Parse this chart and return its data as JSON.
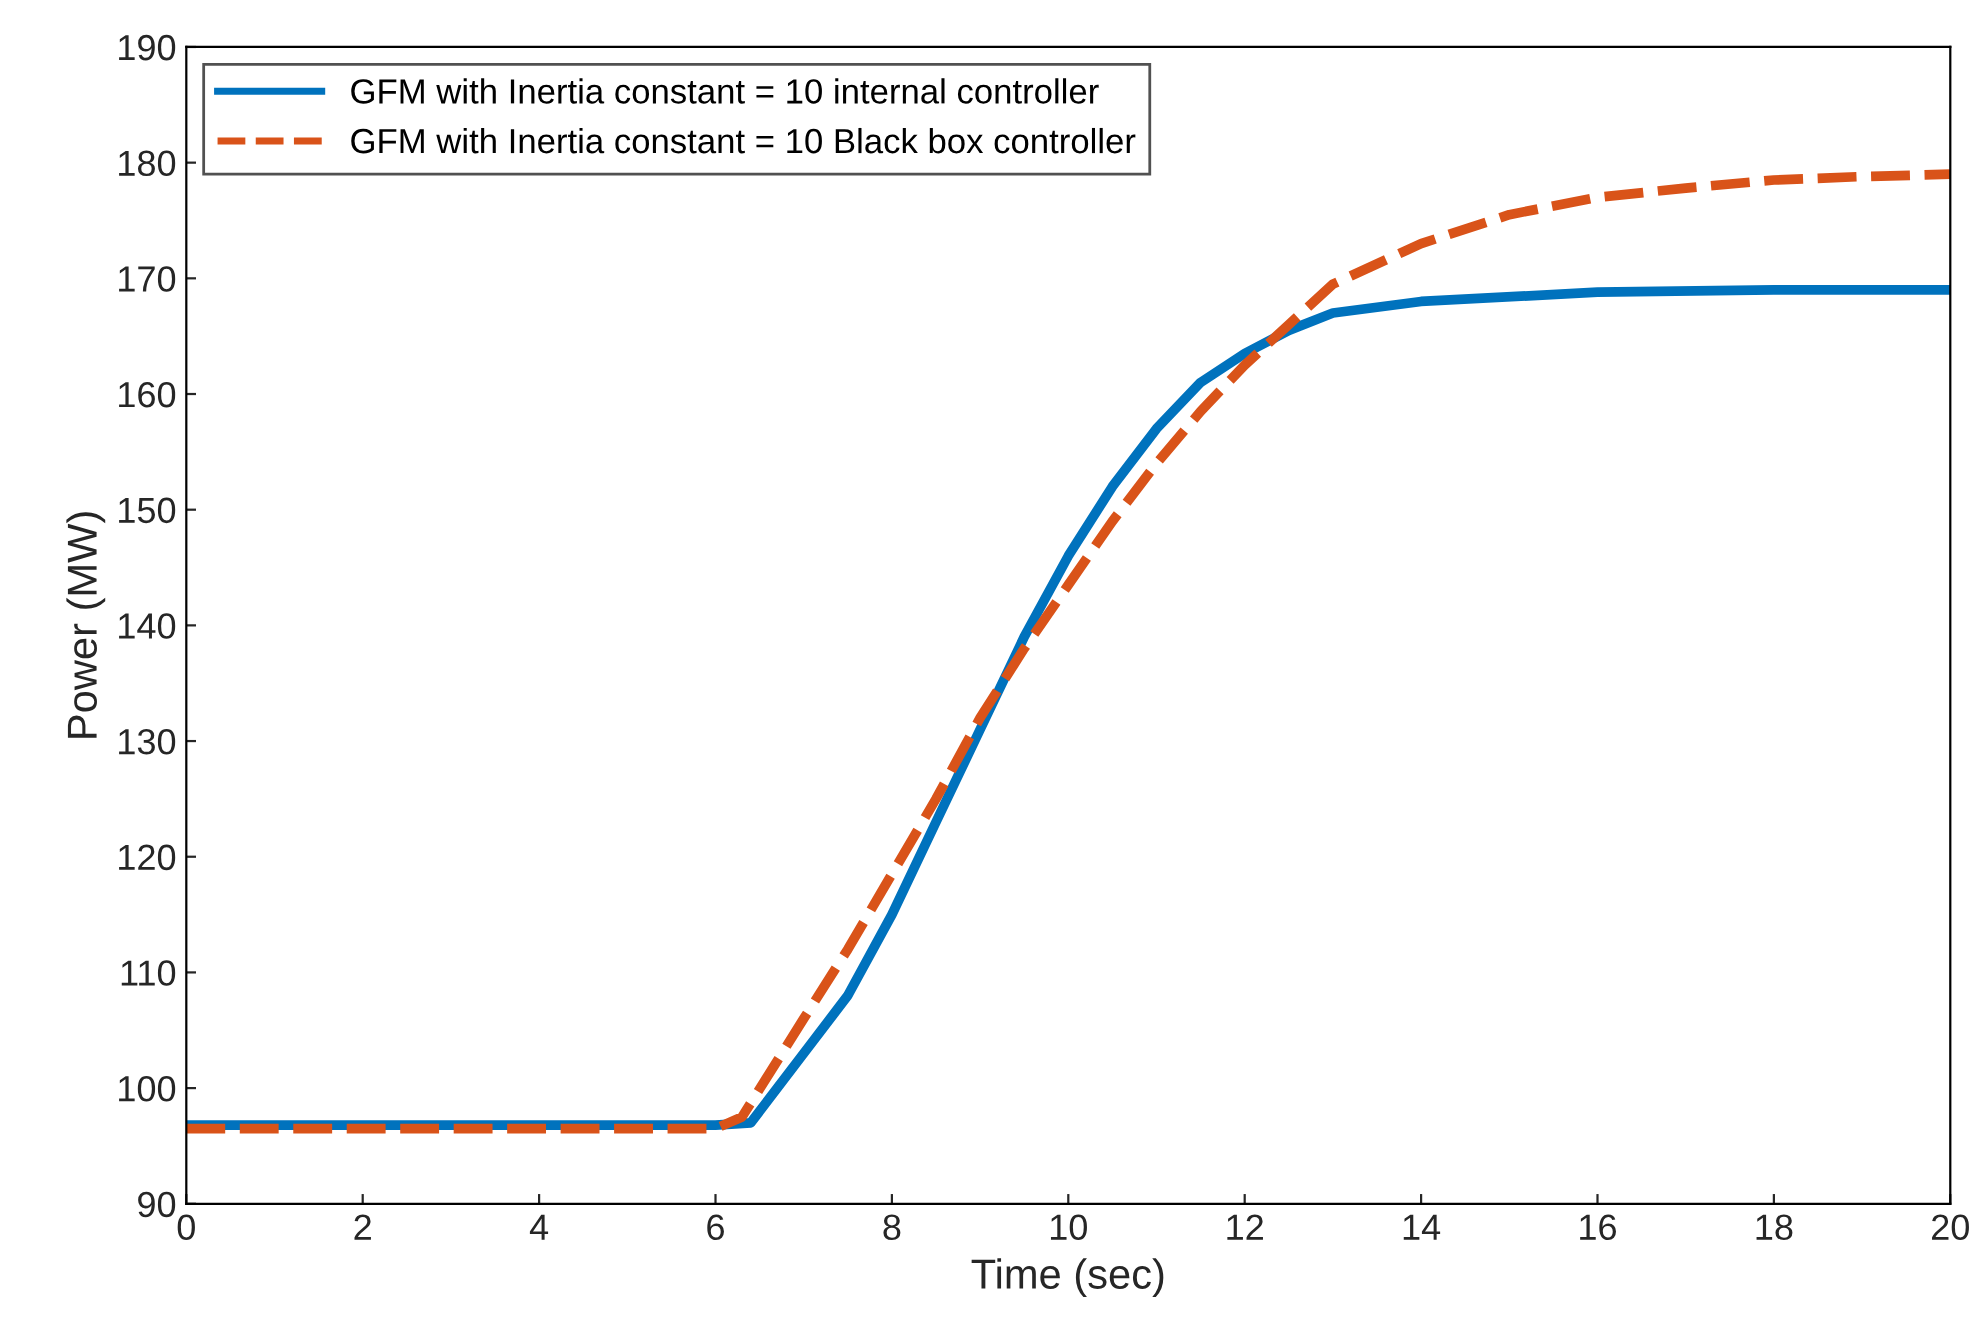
{
  "chart_data": {
    "type": "line",
    "xlabel": "Time (sec)",
    "ylabel": "Power (MW)",
    "xlim": [
      0,
      20
    ],
    "ylim": [
      90,
      190
    ],
    "xticks": [
      0,
      2,
      4,
      6,
      8,
      10,
      12,
      14,
      16,
      18,
      20
    ],
    "yticks": [
      90,
      100,
      110,
      120,
      130,
      140,
      150,
      160,
      170,
      180,
      190
    ],
    "grid": false,
    "legend": "top left",
    "series": [
      {
        "name": "GFM with Inertia constant = 10 internal controller",
        "color": "#0072bd",
        "line_style": "solid",
        "x": [
          0,
          2,
          4,
          6,
          6.4,
          7,
          7.5,
          8,
          8.5,
          9,
          9.5,
          10,
          10.5,
          11,
          11.5,
          12,
          12.5,
          13,
          14,
          16,
          18,
          20
        ],
        "values": [
          96.8,
          96.8,
          96.8,
          96.8,
          97,
          103,
          108,
          115,
          123,
          131,
          139,
          146,
          152,
          157,
          161,
          163.5,
          165.5,
          167,
          168,
          168.8,
          169,
          169
        ]
      },
      {
        "name": "GFM with Inertia constant = 10 Black box controller",
        "color": "#d95319",
        "line_style": "dashed",
        "x": [
          0,
          2,
          4,
          6,
          6.3,
          7,
          7.5,
          8,
          8.5,
          9,
          9.5,
          10,
          10.5,
          11,
          11.5,
          12,
          12.5,
          13,
          14,
          15,
          16,
          17,
          18,
          19,
          20
        ],
        "values": [
          96.5,
          96.5,
          96.5,
          96.5,
          97.5,
          106,
          112,
          118.5,
          125,
          132,
          138,
          143.5,
          149,
          154,
          158.5,
          162.5,
          166,
          169.5,
          173,
          175.5,
          177,
          177.8,
          178.5,
          178.8,
          179
        ]
      }
    ]
  }
}
